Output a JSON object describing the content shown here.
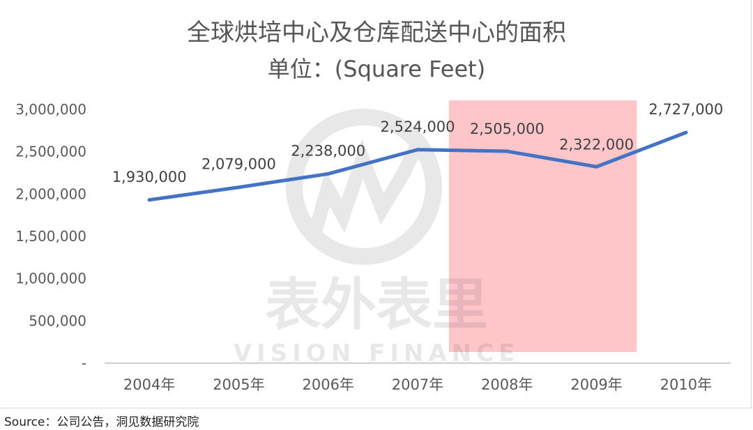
{
  "chart_data": {
    "type": "line",
    "title": "全球烘培中心及仓库配送中心的面积",
    "subtitle": "单位：(Square Feet)",
    "xlabel": "",
    "ylabel": "",
    "categories": [
      "2004年",
      "2005年",
      "2006年",
      "2007年",
      "2008年",
      "2009年",
      "2010年"
    ],
    "series": [
      {
        "values": [
          1930000,
          2079000,
          2238000,
          2524000,
          2505000,
          2322000,
          2727000
        ],
        "data_labels": [
          "1,930,000",
          "2,079,000",
          "2,238,000",
          "2,524,000",
          "2,505,000",
          "2,322,000",
          "2,727,000"
        ],
        "color": "#4472c4"
      }
    ],
    "ylim": [
      0,
      3000000
    ],
    "y_ticks": [
      0,
      500000,
      1000000,
      1500000,
      2000000,
      2500000,
      3000000
    ],
    "y_tick_labels": [
      "-",
      "500,000",
      "1,000,000",
      "1,500,000",
      "2,000,000",
      "2,500,000",
      "3,000,000"
    ],
    "grid": false,
    "highlight": {
      "from_category": "2008年",
      "to_category": "2009年",
      "color": "#ffb3b8"
    },
    "watermark": {
      "brand_cn": "表外表里",
      "brand_en": "VISION FINANCE"
    }
  },
  "source": "Source：公司公告，洞见数据研究院"
}
